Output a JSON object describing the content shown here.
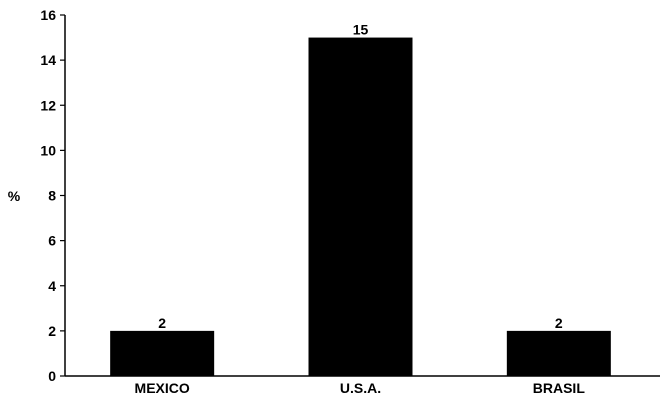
{
  "chart_data": {
    "type": "bar",
    "title": "",
    "xlabel": "",
    "ylabel": "%",
    "categories": [
      "MEXICO",
      "U.S.A.",
      "BRASIL"
    ],
    "values": [
      2,
      15,
      2
    ],
    "data_labels": [
      "2",
      "15",
      "2"
    ],
    "ylim": [
      0,
      16
    ],
    "yticks": [
      0,
      2,
      4,
      6,
      8,
      10,
      12,
      14,
      16
    ],
    "grid": false,
    "legend": "none",
    "bar_color": "#000000"
  }
}
